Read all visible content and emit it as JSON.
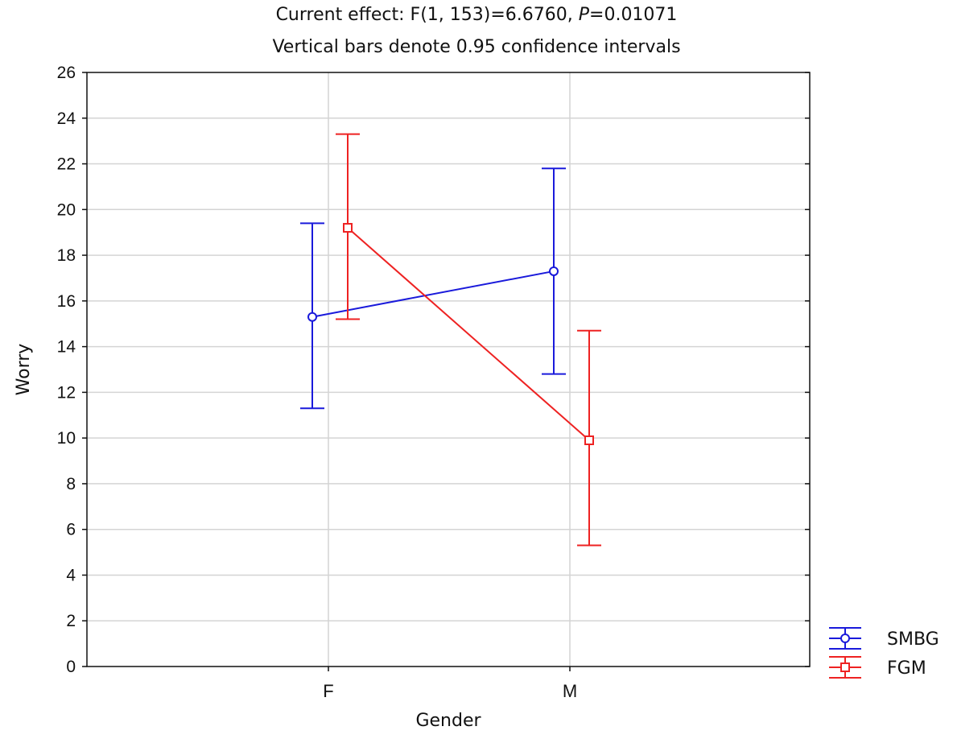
{
  "chart_data": {
    "type": "line",
    "title_line1_prefix": "Current effect: F(1, 153)=6.6760, ",
    "title_line1_italic": "P",
    "title_line1_suffix": "=0.01071",
    "title_line2": "Vertical bars denote 0.95 confidence intervals",
    "xlabel": "Gender",
    "ylabel": "Worry",
    "categories": [
      "F",
      "M"
    ],
    "ylim": [
      0,
      26
    ],
    "yticks": [
      "0",
      "2",
      "4",
      "6",
      "8",
      "10",
      "12",
      "14",
      "16",
      "18",
      "20",
      "22",
      "24",
      "26"
    ],
    "grid": true,
    "legend_position": "bottom-right",
    "series": [
      {
        "name": "SMBG",
        "color": "#1a1adb",
        "marker": "circle",
        "values": [
          15.3,
          17.3
        ],
        "ci_low": [
          11.3,
          12.8
        ],
        "ci_high": [
          19.4,
          21.8
        ]
      },
      {
        "name": "FGM",
        "color": "#ee2222",
        "marker": "square",
        "values": [
          19.2,
          9.9
        ],
        "ci_low": [
          15.2,
          5.3
        ],
        "ci_high": [
          23.3,
          14.7
        ]
      }
    ]
  }
}
